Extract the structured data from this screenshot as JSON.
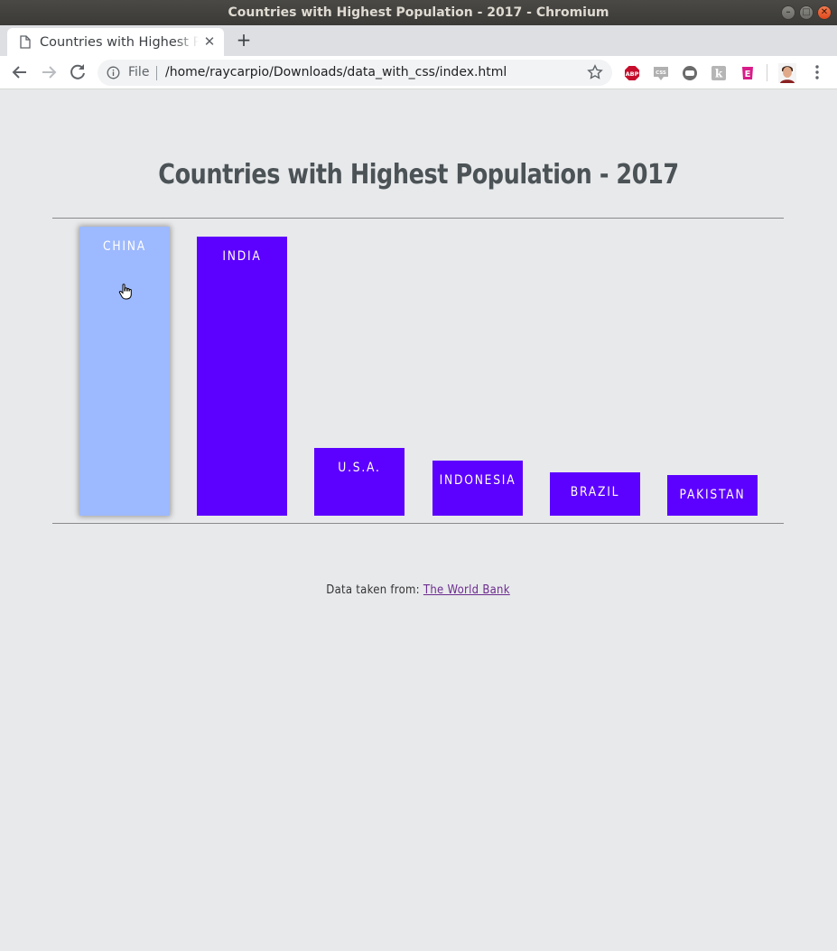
{
  "window": {
    "title": "Countries with Highest Population - 2017 - Chromium"
  },
  "tabs": [
    {
      "title": "Countries with Highest Population - 2017"
    }
  ],
  "toolbar": {
    "scheme_label": "File",
    "url": "/home/raycarpio/Downloads/data_with_css/index.html"
  },
  "extensions": [
    "abp-icon",
    "css-icon",
    "line-chat-icon",
    "k-icon",
    "e-icon"
  ],
  "colors": {
    "bar": "#5c00ff",
    "bar_hover": "#9db9ff",
    "title": "#4c5357",
    "link": "#6c2d8f",
    "background": "#e8e9eb"
  },
  "page": {
    "credit_prefix": "Data taken from:",
    "credit_link": "The World Bank"
  },
  "chart_data": {
    "type": "bar",
    "title": "Countries with Highest Population - 2017",
    "categories": [
      "CHINA",
      "INDIA",
      "U.S.A.",
      "INDONESIA",
      "BRAZIL",
      "PAKISTAN"
    ],
    "values": [
      1386,
      1339,
      325,
      264,
      209,
      197
    ],
    "value_max": 1386,
    "hovered": "CHINA"
  }
}
